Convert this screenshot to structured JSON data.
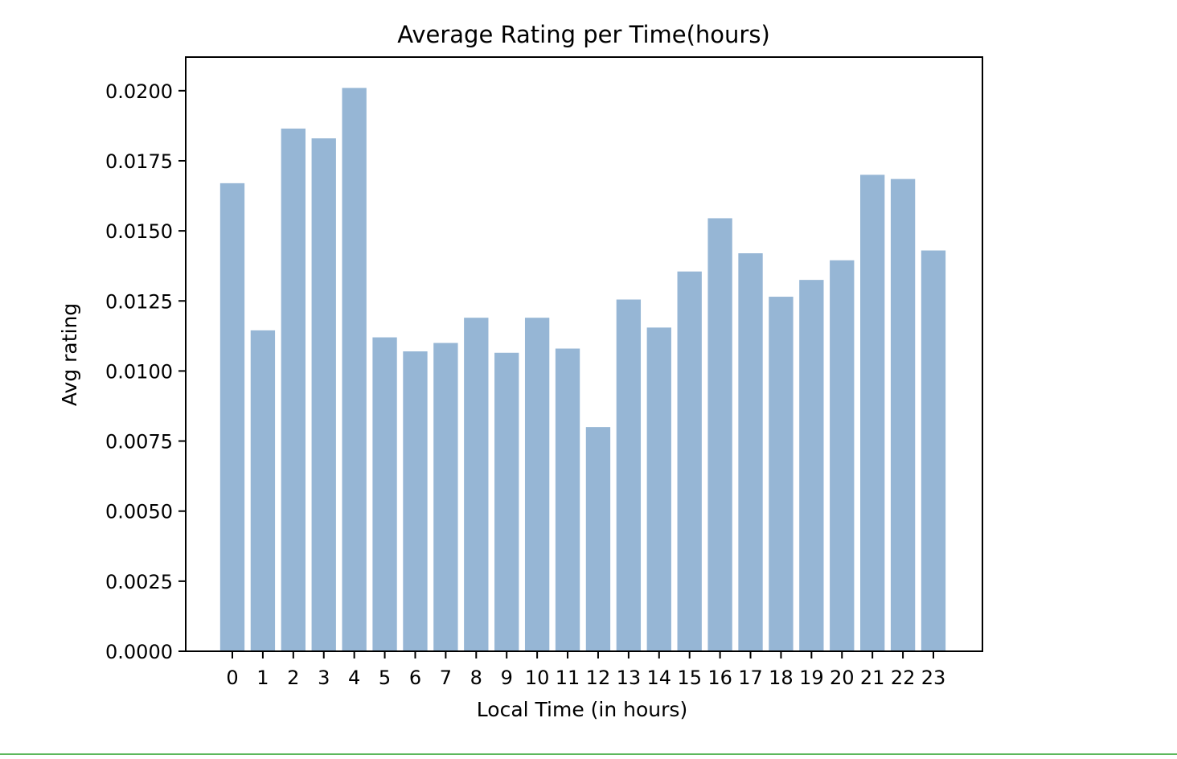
{
  "chart_data": {
    "type": "bar",
    "title": "Average Rating per Time(hours)",
    "xlabel": "Local Time (in hours)",
    "ylabel": "Avg rating",
    "categories": [
      "0",
      "1",
      "2",
      "3",
      "4",
      "5",
      "6",
      "7",
      "8",
      "9",
      "10",
      "11",
      "12",
      "13",
      "14",
      "15",
      "16",
      "17",
      "18",
      "19",
      "20",
      "21",
      "22",
      "23"
    ],
    "values": [
      0.0167,
      0.01145,
      0.01865,
      0.0183,
      0.0201,
      0.0112,
      0.0107,
      0.011,
      0.0119,
      0.01065,
      0.0119,
      0.0108,
      0.008,
      0.01255,
      0.01155,
      0.01355,
      0.01545,
      0.0142,
      0.01265,
      0.01325,
      0.01395,
      0.017,
      0.01685,
      0.0143
    ],
    "ylim": [
      0,
      0.0212
    ],
    "yticks": [
      0,
      0.0025,
      0.005,
      0.0075,
      0.01,
      0.0125,
      0.015,
      0.0175,
      0.02
    ],
    "ytick_labels": [
      "0.0000",
      "0.0025",
      "0.0050",
      "0.0075",
      "0.0100",
      "0.0125",
      "0.0150",
      "0.0175",
      "0.0200"
    ],
    "bar_color": "#96b6d5",
    "grid": false
  }
}
